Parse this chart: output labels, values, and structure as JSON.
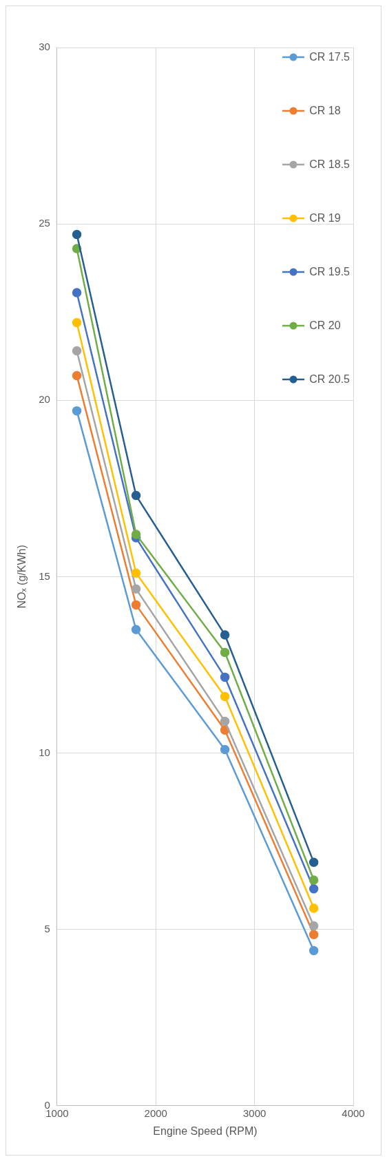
{
  "chart_data": {
    "type": "line",
    "xlabel": "Engine Speed (RPM)",
    "ylabel": "NOₓ (g/KWh)",
    "x": [
      1200,
      1800,
      2700,
      3600
    ],
    "xlim": [
      1000,
      4000
    ],
    "xticks": [
      1000,
      2000,
      3000,
      4000
    ],
    "ylim": [
      0,
      30
    ],
    "yticks": [
      0,
      5,
      10,
      15,
      20,
      25,
      30
    ],
    "grid": true,
    "legend": "top right",
    "marker": "circle",
    "line_style": "solid",
    "series": [
      {
        "name": "CR 17.5",
        "color": "#5b9bd5",
        "values": [
          19.7,
          13.5,
          10.1,
          4.4
        ]
      },
      {
        "name": "CR 18",
        "color": "#ed7d31",
        "values": [
          20.7,
          14.2,
          10.65,
          4.85
        ]
      },
      {
        "name": "CR 18.5",
        "color": "#a5a5a5",
        "values": [
          21.4,
          14.65,
          10.9,
          5.1
        ]
      },
      {
        "name": "CR 19",
        "color": "#ffc000",
        "values": [
          22.2,
          15.1,
          11.6,
          5.6
        ]
      },
      {
        "name": "CR 19.5",
        "color": "#4472c4",
        "values": [
          23.05,
          16.1,
          12.15,
          6.15
        ]
      },
      {
        "name": "CR 20",
        "color": "#70ad47",
        "values": [
          24.3,
          16.2,
          12.85,
          6.4
        ]
      },
      {
        "name": "CR 20.5",
        "color": "#255e91",
        "values": [
          24.7,
          17.3,
          13.35,
          6.9
        ]
      }
    ]
  }
}
